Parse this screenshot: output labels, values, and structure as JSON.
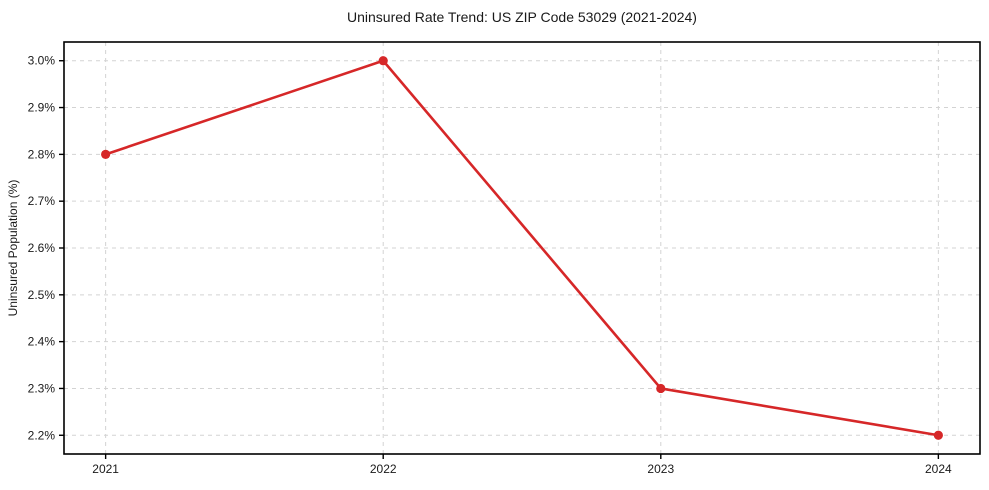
{
  "chart_data": {
    "type": "line",
    "title": "Uninsured Rate Trend: US ZIP Code 53029 (2021-2024)",
    "xlabel": "",
    "ylabel": "Uninsured Population (%)",
    "x": [
      2021,
      2022,
      2023,
      2024
    ],
    "x_tick_labels": [
      "2021",
      "2022",
      "2023",
      "2024"
    ],
    "series": [
      {
        "name": "Uninsured rate",
        "values": [
          2.8,
          3.0,
          2.3,
          2.2
        ]
      }
    ],
    "y_ticks": [
      2.2,
      2.3,
      2.4,
      2.5,
      2.6,
      2.7,
      2.8,
      2.9,
      3.0
    ],
    "y_tick_labels": [
      "2.2%",
      "2.3%",
      "2.4%",
      "2.5%",
      "2.6%",
      "2.7%",
      "2.8%",
      "2.9%",
      "3.0%"
    ],
    "ylim": [
      2.16,
      3.04
    ],
    "xlim": [
      2020.85,
      2024.15
    ],
    "grid": true,
    "grid_style": "dashed",
    "legend": false,
    "line_color": "#d62728",
    "marker": "circle",
    "grid_color": "#d3d3d3",
    "axis_color": "#000000",
    "background_color": "#ffffff"
  }
}
